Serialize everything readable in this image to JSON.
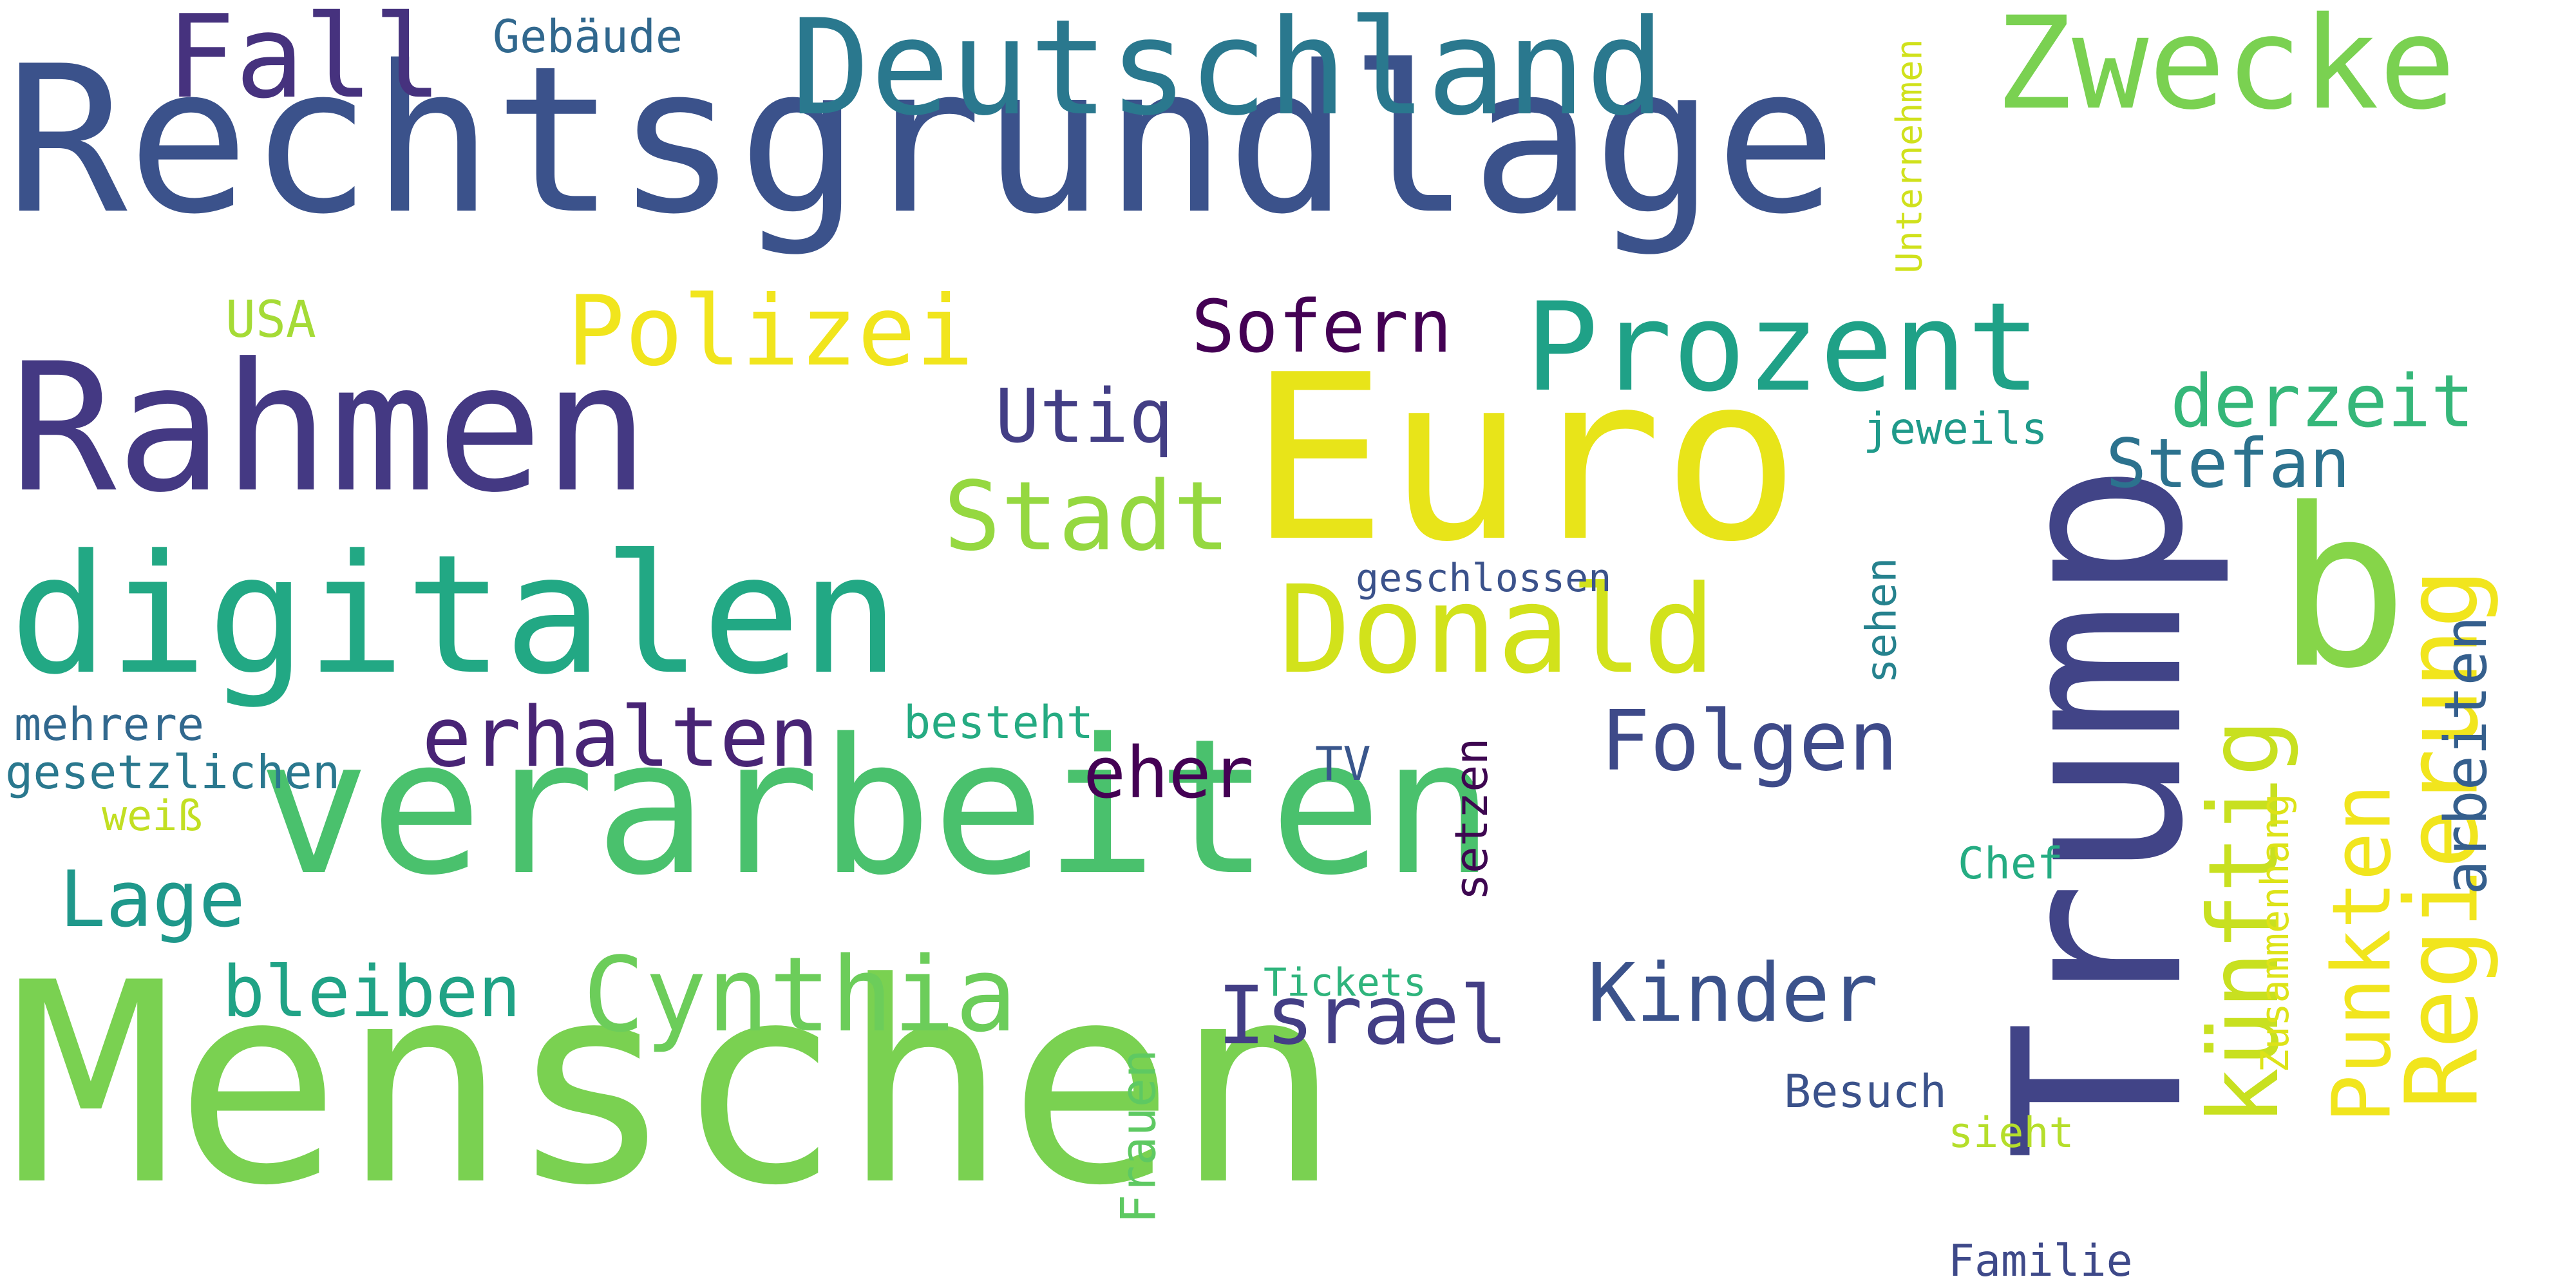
{
  "words": [
    {
      "text": "Rechtsgrundlage",
      "color": "#3b528b"
    },
    {
      "text": "Menschen",
      "color": "#7ad151"
    },
    {
      "text": "verarbeiten",
      "color": "#4ac16d"
    },
    {
      "text": "Rahmen",
      "color": "#443983"
    },
    {
      "text": "digitalen",
      "color": "#22a884"
    },
    {
      "text": "Euro",
      "color": "#e8e419"
    },
    {
      "text": "Trump",
      "color": "#414487"
    },
    {
      "text": "Deutschland",
      "color": "#2a788e"
    },
    {
      "text": "Zwecke",
      "color": "#7ad151"
    },
    {
      "text": "Fall",
      "color": "#46327e"
    },
    {
      "text": "b",
      "color": "#86d549"
    },
    {
      "text": "Prozent",
      "color": "#1fa187"
    },
    {
      "text": "Donald",
      "color": "#d2e21b"
    },
    {
      "text": "Polizei",
      "color": "#f1e51d"
    },
    {
      "text": "Stadt",
      "color": "#95d840"
    },
    {
      "text": "Cynthia",
      "color": "#6ccd5a"
    },
    {
      "text": "Regierung",
      "color": "#f1e51d"
    },
    {
      "text": "künftig",
      "color": "#c8e020"
    },
    {
      "text": "erhalten",
      "color": "#482475"
    },
    {
      "text": "Folgen",
      "color": "#3e4a89"
    },
    {
      "text": "Kinder",
      "color": "#3b528b"
    },
    {
      "text": "Israel",
      "color": "#433e85"
    },
    {
      "text": "Sofern",
      "color": "#440154"
    },
    {
      "text": "derzeit",
      "color": "#35b779"
    },
    {
      "text": "Stefan",
      "color": "#2c728e"
    },
    {
      "text": "Utiq",
      "color": "#433e85"
    },
    {
      "text": "Lage",
      "color": "#1f988b"
    },
    {
      "text": "bleiben",
      "color": "#20a386"
    },
    {
      "text": "eher",
      "color": "#440154"
    },
    {
      "text": "Punkten",
      "color": "#f1e51d"
    },
    {
      "text": "arbeiten",
      "color": "#355f8d"
    },
    {
      "text": "Gebäude",
      "color": "#31688e"
    },
    {
      "text": "USA",
      "color": "#a5db36"
    },
    {
      "text": "Unternehmen",
      "color": "#d0e11c"
    },
    {
      "text": "jeweils",
      "color": "#1f9a8a"
    },
    {
      "text": "geschlossen",
      "color": "#3b528b"
    },
    {
      "text": "mehrere",
      "color": "#31688e"
    },
    {
      "text": "gesetzlichen",
      "color": "#2a788e"
    },
    {
      "text": "besteht",
      "color": "#25ab82"
    },
    {
      "text": "weiß",
      "color": "#c2df23"
    },
    {
      "text": "TV",
      "color": "#39568c"
    },
    {
      "text": "setzen",
      "color": "#3e0751"
    },
    {
      "text": "sehen",
      "color": "#26828e"
    },
    {
      "text": "Zusammenhang",
      "color": "#dde318"
    },
    {
      "text": "Chef",
      "color": "#25ac82"
    },
    {
      "text": "Tickets",
      "color": "#2fb47c"
    },
    {
      "text": "Frauen",
      "color": "#5ec962"
    },
    {
      "text": "Besuch",
      "color": "#3b528b"
    },
    {
      "text": "sieht",
      "color": "#b5de2b"
    },
    {
      "text": "Familie",
      "color": "#3e4989"
    }
  ]
}
